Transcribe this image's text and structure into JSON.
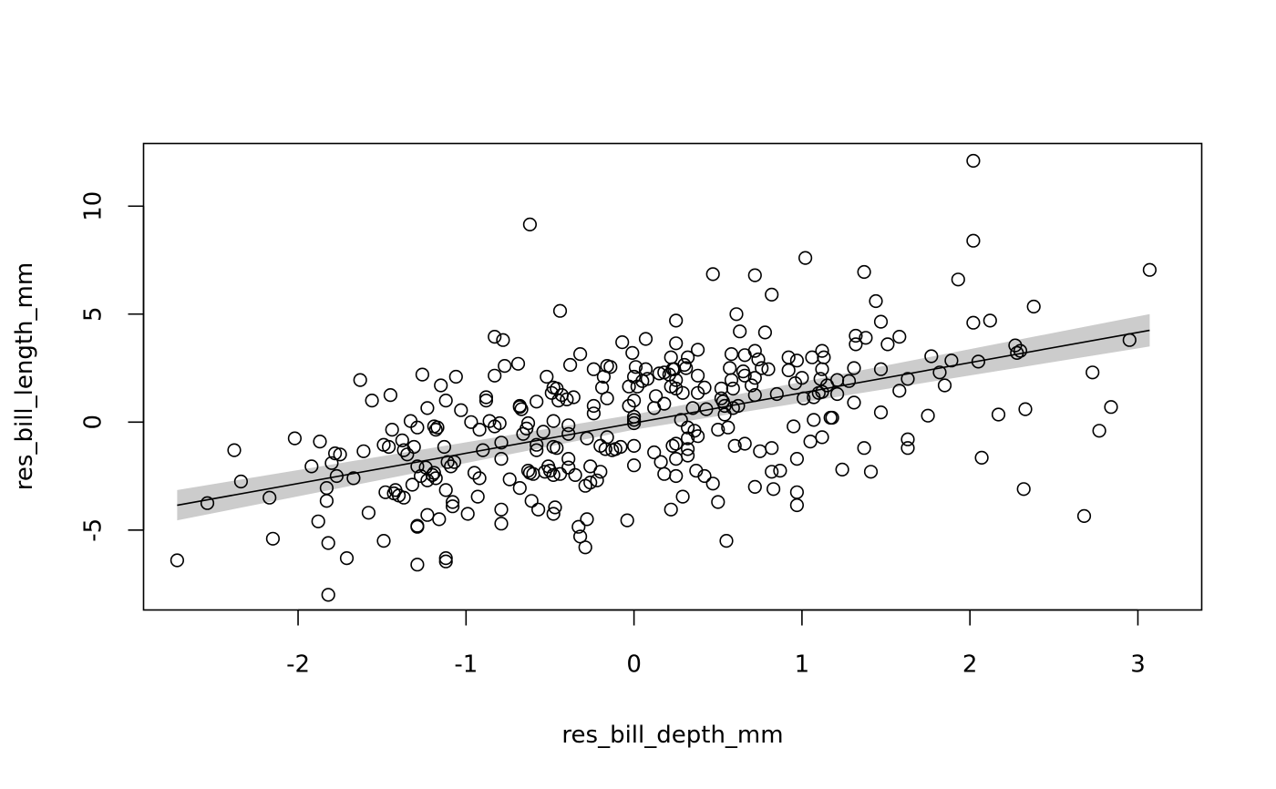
{
  "chart_data": {
    "type": "scatter",
    "xlabel": "res_bill_depth_mm",
    "ylabel": "res_bill_length_mm",
    "xlim": [
      -2.92,
      3.38
    ],
    "ylim": [
      -8.7,
      12.9
    ],
    "x_ticks": [
      -2,
      -1,
      0,
      1,
      2,
      3
    ],
    "x_tick_labels": [
      "-2",
      "-1",
      "0",
      "1",
      "2",
      "3"
    ],
    "y_ticks": [
      -5,
      0,
      5,
      10
    ],
    "y_tick_labels": [
      "-5",
      "0",
      "5",
      "10"
    ],
    "grid": false,
    "fit_line": {
      "x": [
        -2.72,
        3.07
      ],
      "y": [
        -3.85,
        4.25
      ]
    },
    "confidence_band": {
      "x": [
        -2.72,
        0,
        3.07
      ],
      "lower": [
        -4.55,
        -0.35,
        3.5
      ],
      "upper": [
        -3.15,
        0.35,
        5.0
      ]
    },
    "points": [
      [
        -2.72,
        -6.4
      ],
      [
        -2.54,
        -3.75
      ],
      [
        -2.38,
        -1.3
      ],
      [
        -2.34,
        -2.75
      ],
      [
        -2.17,
        -3.5
      ],
      [
        -2.15,
        -5.4
      ],
      [
        -2.02,
        -0.75
      ],
      [
        -1.92,
        -2.05
      ],
      [
        -1.88,
        -4.6
      ],
      [
        -1.87,
        -0.9
      ],
      [
        -1.83,
        -3.05
      ],
      [
        -1.83,
        -3.65
      ],
      [
        -1.82,
        -5.6
      ],
      [
        -1.82,
        -8.0
      ],
      [
        -1.8,
        -1.9
      ],
      [
        -1.78,
        -1.45
      ],
      [
        -1.77,
        -2.5
      ],
      [
        -1.75,
        -1.5
      ],
      [
        -1.71,
        -6.3
      ],
      [
        -1.67,
        -2.6
      ],
      [
        -1.63,
        1.95
      ],
      [
        -1.61,
        -1.35
      ],
      [
        -1.58,
        -4.2
      ],
      [
        -1.56,
        1.0
      ],
      [
        -1.49,
        -5.5
      ],
      [
        -1.49,
        -1.05
      ],
      [
        -1.48,
        -3.25
      ],
      [
        -1.46,
        -1.15
      ],
      [
        -1.45,
        1.25
      ],
      [
        -1.44,
        -0.35
      ],
      [
        -1.43,
        -3.3
      ],
      [
        -1.42,
        -3.15
      ],
      [
        -1.4,
        -3.4
      ],
      [
        -1.38,
        -0.85
      ],
      [
        -1.37,
        -1.3
      ],
      [
        -1.37,
        -3.5
      ],
      [
        -1.35,
        -1.5
      ],
      [
        -1.33,
        0.05
      ],
      [
        -1.32,
        -2.9
      ],
      [
        -1.31,
        -1.15
      ],
      [
        -1.29,
        -2.05
      ],
      [
        -1.29,
        -0.25
      ],
      [
        -1.29,
        -4.85
      ],
      [
        -1.29,
        -4.8
      ],
      [
        -1.29,
        -6.6
      ],
      [
        -1.27,
        -2.5
      ],
      [
        -1.26,
        2.2
      ],
      [
        -1.24,
        -2.1
      ],
      [
        -1.23,
        -2.7
      ],
      [
        -1.23,
        0.65
      ],
      [
        -1.23,
        -4.3
      ],
      [
        -1.2,
        -2.45
      ],
      [
        -1.19,
        -2.35
      ],
      [
        -1.19,
        -0.2
      ],
      [
        -1.18,
        -0.35
      ],
      [
        -1.18,
        -2.6
      ],
      [
        -1.17,
        -0.25
      ],
      [
        -1.16,
        -4.5
      ],
      [
        -1.15,
        1.7
      ],
      [
        -1.13,
        -1.15
      ],
      [
        -1.12,
        -6.3
      ],
      [
        -1.12,
        -6.45
      ],
      [
        -1.12,
        -3.15
      ],
      [
        -1.12,
        1.0
      ],
      [
        -1.11,
        -1.85
      ],
      [
        -1.09,
        -2.05
      ],
      [
        -1.08,
        -3.7
      ],
      [
        -1.08,
        -3.9
      ],
      [
        -1.07,
        -1.85
      ],
      [
        -1.06,
        2.1
      ],
      [
        -1.03,
        0.55
      ],
      [
        -0.99,
        -4.25
      ],
      [
        -0.97,
        0.0
      ],
      [
        -0.95,
        -2.35
      ],
      [
        -0.93,
        -3.45
      ],
      [
        -0.92,
        -2.6
      ],
      [
        -0.92,
        -0.35
      ],
      [
        -0.9,
        -1.3
      ],
      [
        -0.88,
        1.0
      ],
      [
        -0.88,
        1.15
      ],
      [
        -0.86,
        0.05
      ],
      [
        -0.83,
        2.15
      ],
      [
        -0.83,
        -0.2
      ],
      [
        -0.83,
        3.95
      ],
      [
        -0.8,
        -0.05
      ],
      [
        -0.79,
        -4.05
      ],
      [
        -0.79,
        -4.7
      ],
      [
        -0.79,
        -0.95
      ],
      [
        -0.79,
        -1.7
      ],
      [
        -0.78,
        3.8
      ],
      [
        -0.77,
        2.6
      ],
      [
        -0.74,
        -2.65
      ],
      [
        -0.69,
        2.7
      ],
      [
        -0.68,
        0.7
      ],
      [
        -0.68,
        0.75
      ],
      [
        -0.67,
        0.6
      ],
      [
        -0.68,
        -3.05
      ],
      [
        -0.66,
        -0.55
      ],
      [
        -0.64,
        -0.3
      ],
      [
        -0.63,
        -0.05
      ],
      [
        -0.63,
        -2.25
      ],
      [
        -0.62,
        -2.35
      ],
      [
        -0.62,
        9.15
      ],
      [
        -0.61,
        -3.65
      ],
      [
        -0.6,
        -2.4
      ],
      [
        -0.58,
        0.95
      ],
      [
        -0.58,
        -1.05
      ],
      [
        -0.58,
        -1.3
      ],
      [
        -0.57,
        -4.05
      ],
      [
        -0.54,
        -0.45
      ],
      [
        -0.53,
        -2.3
      ],
      [
        -0.52,
        2.1
      ],
      [
        -0.51,
        -2.05
      ],
      [
        -0.5,
        -2.25
      ],
      [
        -0.49,
        1.35
      ],
      [
        -0.48,
        1.6
      ],
      [
        -0.48,
        0.05
      ],
      [
        -0.48,
        -1.15
      ],
      [
        -0.48,
        -2.45
      ],
      [
        -0.48,
        -4.25
      ],
      [
        -0.47,
        -3.95
      ],
      [
        -0.46,
        1.55
      ],
      [
        -0.46,
        -1.2
      ],
      [
        -0.45,
        1.0
      ],
      [
        -0.44,
        5.15
      ],
      [
        -0.44,
        -2.4
      ],
      [
        -0.43,
        1.25
      ],
      [
        -0.4,
        1.05
      ],
      [
        -0.39,
        -0.15
      ],
      [
        -0.39,
        -0.55
      ],
      [
        -0.39,
        -1.7
      ],
      [
        -0.39,
        -2.1
      ],
      [
        -0.38,
        2.65
      ],
      [
        -0.36,
        1.15
      ],
      [
        -0.35,
        -2.45
      ],
      [
        -0.33,
        -4.85
      ],
      [
        -0.32,
        -5.3
      ],
      [
        -0.32,
        3.15
      ],
      [
        -0.29,
        -5.8
      ],
      [
        -0.29,
        -2.95
      ],
      [
        -0.28,
        -4.5
      ],
      [
        -0.28,
        -0.75
      ],
      [
        -0.26,
        -2.05
      ],
      [
        -0.26,
        -2.8
      ],
      [
        -0.24,
        2.45
      ],
      [
        -0.24,
        0.4
      ],
      [
        -0.24,
        0.75
      ],
      [
        -0.22,
        -2.7
      ],
      [
        -0.2,
        -1.1
      ],
      [
        -0.2,
        -2.3
      ],
      [
        -0.19,
        1.6
      ],
      [
        -0.18,
        2.1
      ],
      [
        -0.17,
        -1.25
      ],
      [
        -0.16,
        1.1
      ],
      [
        -0.16,
        2.6
      ],
      [
        -0.16,
        -0.7
      ],
      [
        -0.14,
        2.55
      ],
      [
        -0.13,
        -1.3
      ],
      [
        -0.11,
        -1.25
      ],
      [
        -0.08,
        -1.15
      ],
      [
        -0.07,
        3.7
      ],
      [
        -0.04,
        -4.55
      ],
      [
        -0.03,
        0.75
      ],
      [
        -0.03,
        1.65
      ],
      [
        -0.01,
        3.2
      ],
      [
        0,
        2.1
      ],
      [
        0,
        1.0
      ],
      [
        0,
        0.25
      ],
      [
        0,
        0.1
      ],
      [
        0,
        -0.05
      ],
      [
        0,
        -1.1
      ],
      [
        0,
        -2.0
      ],
      [
        0.01,
        2.55
      ],
      [
        0.02,
        1.65
      ],
      [
        0.05,
        1.9
      ],
      [
        0.07,
        3.85
      ],
      [
        0.07,
        2.45
      ],
      [
        0.08,
        2.0
      ],
      [
        0.12,
        -1.4
      ],
      [
        0.12,
        0.65
      ],
      [
        0.13,
        1.2
      ],
      [
        0.15,
        2.25
      ],
      [
        0.16,
        -1.85
      ],
      [
        0.18,
        2.3
      ],
      [
        0.18,
        -2.4
      ],
      [
        0.18,
        0.85
      ],
      [
        0.21,
        2.2
      ],
      [
        0.22,
        1.65
      ],
      [
        0.22,
        3.0
      ],
      [
        0.22,
        -4.05
      ],
      [
        0.23,
        -1.1
      ],
      [
        0.23,
        2.45
      ],
      [
        0.24,
        2.45
      ],
      [
        0.25,
        4.7
      ],
      [
        0.25,
        3.65
      ],
      [
        0.25,
        1.95
      ],
      [
        0.25,
        1.55
      ],
      [
        0.25,
        -1.0
      ],
      [
        0.25,
        -1.7
      ],
      [
        0.25,
        -2.5
      ],
      [
        0.28,
        0.1
      ],
      [
        0.29,
        1.35
      ],
      [
        0.29,
        -3.45
      ],
      [
        0.3,
        2.65
      ],
      [
        0.31,
        2.5
      ],
      [
        0.32,
        3.0
      ],
      [
        0.32,
        -0.25
      ],
      [
        0.32,
        -0.75
      ],
      [
        0.32,
        -1.25
      ],
      [
        0.32,
        -1.55
      ],
      [
        0.35,
        0.65
      ],
      [
        0.36,
        -0.4
      ],
      [
        0.37,
        -2.25
      ],
      [
        0.38,
        3.35
      ],
      [
        0.38,
        2.15
      ],
      [
        0.38,
        1.35
      ],
      [
        0.38,
        -0.65
      ],
      [
        0.42,
        1.6
      ],
      [
        0.43,
        0.6
      ],
      [
        0.42,
        -2.5
      ],
      [
        0.47,
        -2.85
      ],
      [
        0.47,
        6.85
      ],
      [
        0.5,
        -3.7
      ],
      [
        0.5,
        -0.35
      ],
      [
        0.52,
        1.55
      ],
      [
        0.52,
        1.1
      ],
      [
        0.53,
        0.95
      ],
      [
        0.54,
        0.75
      ],
      [
        0.54,
        0.35
      ],
      [
        0.55,
        -5.5
      ],
      [
        0.56,
        -0.25
      ],
      [
        0.57,
        2.5
      ],
      [
        0.58,
        3.15
      ],
      [
        0.58,
        1.95
      ],
      [
        0.59,
        1.55
      ],
      [
        0.59,
        0.65
      ],
      [
        0.6,
        -1.1
      ],
      [
        0.61,
        5.0
      ],
      [
        0.62,
        0.75
      ],
      [
        0.63,
        4.2
      ],
      [
        0.65,
        2.35
      ],
      [
        0.66,
        2.15
      ],
      [
        0.66,
        3.1
      ],
      [
        0.66,
        -1.0
      ],
      [
        0.7,
        1.7
      ],
      [
        0.72,
        6.8
      ],
      [
        0.72,
        1.25
      ],
      [
        0.72,
        3.3
      ],
      [
        0.72,
        2.05
      ],
      [
        0.72,
        -3.0
      ],
      [
        0.74,
        2.9
      ],
      [
        0.75,
        -1.35
      ],
      [
        0.76,
        2.5
      ],
      [
        0.78,
        4.15
      ],
      [
        0.8,
        2.45
      ],
      [
        0.82,
        -1.2
      ],
      [
        0.82,
        -2.3
      ],
      [
        0.82,
        5.9
      ],
      [
        0.83,
        -3.1
      ],
      [
        0.85,
        1.3
      ],
      [
        0.87,
        -2.25
      ],
      [
        0.92,
        3.0
      ],
      [
        0.92,
        2.4
      ],
      [
        0.95,
        -0.2
      ],
      [
        0.96,
        1.8
      ],
      [
        0.97,
        2.85
      ],
      [
        0.97,
        -1.7
      ],
      [
        0.97,
        -3.25
      ],
      [
        0.97,
        -3.85
      ],
      [
        1.0,
        2.05
      ],
      [
        1.01,
        1.1
      ],
      [
        1.02,
        7.6
      ],
      [
        1.05,
        -0.9
      ],
      [
        1.06,
        3.0
      ],
      [
        1.07,
        0.1
      ],
      [
        1.07,
        1.15
      ],
      [
        1.1,
        1.35
      ],
      [
        1.11,
        2.0
      ],
      [
        1.12,
        2.45
      ],
      [
        1.12,
        3.3
      ],
      [
        1.12,
        1.4
      ],
      [
        1.12,
        -0.7
      ],
      [
        1.13,
        3.0
      ],
      [
        1.15,
        1.7
      ],
      [
        1.17,
        0.2
      ],
      [
        1.18,
        0.2
      ],
      [
        1.21,
        1.95
      ],
      [
        1.21,
        1.3
      ],
      [
        1.24,
        -2.2
      ],
      [
        1.28,
        1.9
      ],
      [
        1.31,
        0.9
      ],
      [
        1.31,
        2.5
      ],
      [
        1.32,
        4.0
      ],
      [
        1.32,
        3.6
      ],
      [
        1.37,
        -1.2
      ],
      [
        1.37,
        6.95
      ],
      [
        1.38,
        3.9
      ],
      [
        1.41,
        -2.3
      ],
      [
        1.44,
        5.6
      ],
      [
        1.47,
        4.65
      ],
      [
        1.47,
        2.45
      ],
      [
        1.47,
        0.45
      ],
      [
        1.51,
        3.6
      ],
      [
        1.58,
        1.45
      ],
      [
        1.58,
        3.95
      ],
      [
        1.63,
        2.0
      ],
      [
        1.63,
        -0.8
      ],
      [
        1.63,
        -1.2
      ],
      [
        1.75,
        0.3
      ],
      [
        1.77,
        3.05
      ],
      [
        1.82,
        2.3
      ],
      [
        1.85,
        1.7
      ],
      [
        1.89,
        2.85
      ],
      [
        1.93,
        6.6
      ],
      [
        2.02,
        4.6
      ],
      [
        2.02,
        12.1
      ],
      [
        2.02,
        8.4
      ],
      [
        2.05,
        2.8
      ],
      [
        2.07,
        -1.65
      ],
      [
        2.12,
        4.7
      ],
      [
        2.17,
        0.35
      ],
      [
        2.27,
        3.55
      ],
      [
        2.28,
        3.2
      ],
      [
        2.3,
        3.3
      ],
      [
        2.32,
        -3.1
      ],
      [
        2.33,
        0.6
      ],
      [
        2.38,
        5.35
      ],
      [
        2.68,
        -4.35
      ],
      [
        2.73,
        2.3
      ],
      [
        2.77,
        -0.4
      ],
      [
        2.84,
        0.7
      ],
      [
        2.95,
        3.8
      ],
      [
        3.07,
        7.05
      ]
    ]
  }
}
